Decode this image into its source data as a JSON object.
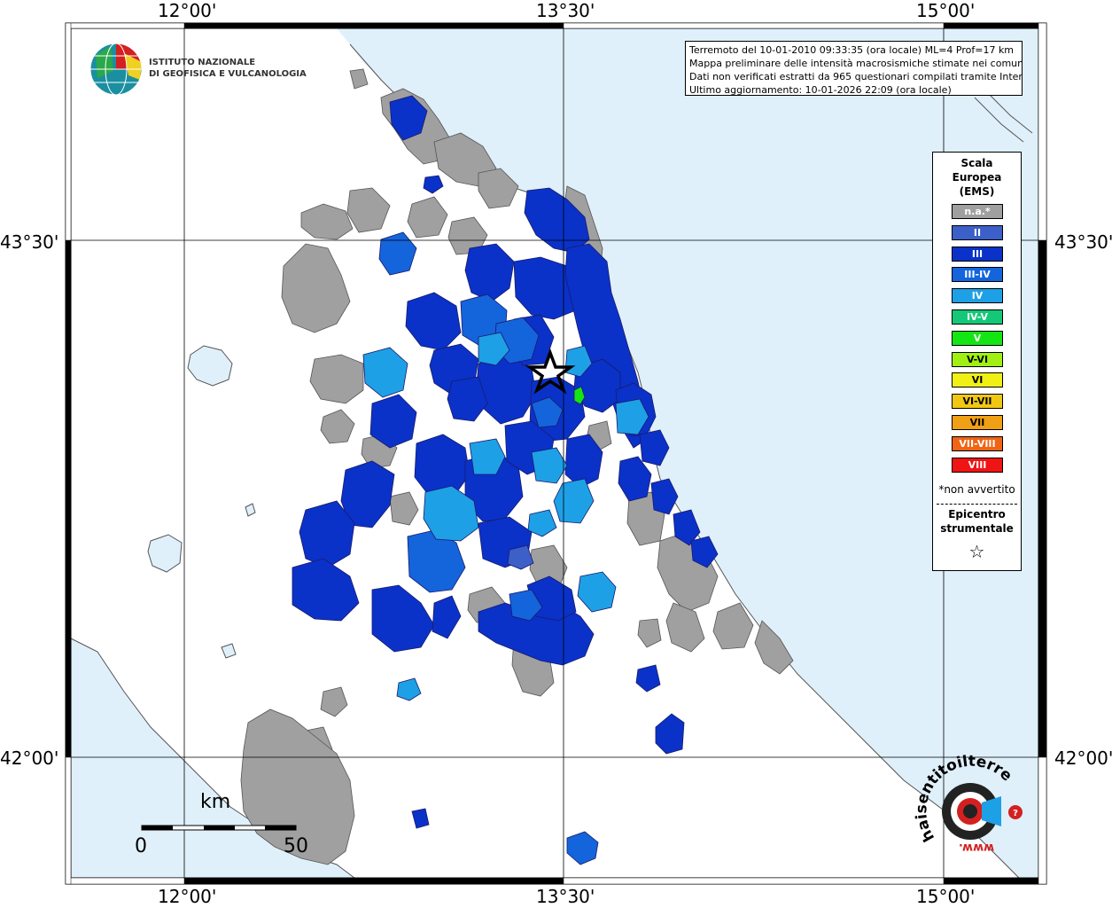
{
  "header": {
    "info_line1": "Terremoto del 10-01-2010 09:33:35 (ora locale) ML=4 Prof=17 km",
    "info_line2": "Mappa preliminare delle intensità macrosismiche stimate nei comuni",
    "info_line3": "Dati non verificati estratti da 965 questionari compilati tramite Internet.",
    "info_line4": "Ultimo aggiornamento: 10-01-2026 22:09 (ora locale)"
  },
  "logo": {
    "ingv_line1": "ISTITUTO NAZIONALE",
    "ingv_line2": "DI GEOFISICA E VULCANOLOGIA",
    "hai_sentito_text": "haisentitoilterremoto.it",
    "www_text": "www."
  },
  "coordinates": {
    "lon_top": [
      "12°00'",
      "13°30'",
      "15°00'"
    ],
    "lon_bottom": [
      "12°00'",
      "13°30'",
      "15°00'"
    ],
    "lat_left": [
      "43°30'",
      "42°00'"
    ],
    "lat_right": [
      "43°30'",
      "42°00'"
    ]
  },
  "scale_bar": {
    "unit": "km",
    "start": "0",
    "end": "50"
  },
  "legend": {
    "title_line1": "Scala",
    "title_line2": "Europea",
    "title_line3": "(EMS)",
    "items": [
      {
        "label": "n.a.*",
        "color": "#a0a0a0"
      },
      {
        "label": "II",
        "color": "#3c5fc8"
      },
      {
        "label": "III",
        "color": "#0a32c8"
      },
      {
        "label": "III-IV",
        "color": "#1464dc"
      },
      {
        "label": "IV",
        "color": "#1ea0e6"
      },
      {
        "label": "IV-V",
        "color": "#14c878"
      },
      {
        "label": "V",
        "color": "#14e614"
      },
      {
        "label": "V-VI",
        "color": "#a0f014"
      },
      {
        "label": "VI",
        "color": "#f0f014"
      },
      {
        "label": "VI-VII",
        "color": "#f0c814"
      },
      {
        "label": "VII",
        "color": "#f0a014"
      },
      {
        "label": "VII-VIII",
        "color": "#f06414"
      },
      {
        "label": "VIII",
        "color": "#f01414"
      }
    ],
    "note": "*non avvertito",
    "epicenter_line1": "Epicentro",
    "epicenter_line2": "strumentale",
    "star_symbol": "☆"
  },
  "colors": {
    "sea": "#dff0fa",
    "land": "#ffffff",
    "na": "#a0a0a0",
    "II": "#3c5fc8",
    "III": "#0a32c8",
    "III_IV": "#1464dc",
    "IV": "#1ea0e6",
    "V": "#14e614"
  }
}
